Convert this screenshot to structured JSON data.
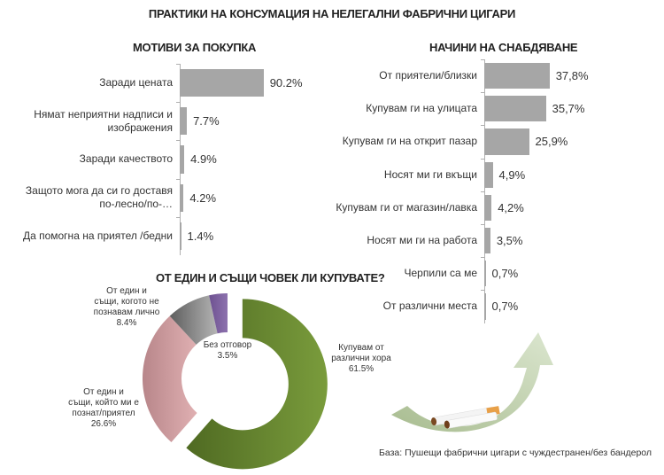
{
  "page": {
    "title": "ПРАКТИКИ НА КОНСУМАЦИЯ НА НЕЛЕГАЛНИ ФАБРИЧНИ ЦИГАРИ",
    "footnote": "База: Пушещи фабрични цигари  с чуждестранен/без бандерол",
    "colors": {
      "bar": "#a6a6a6",
      "green": "#6f8f33",
      "pink": "#d9a3a6",
      "gray": "#8c8c8c",
      "purple": "#8064a2",
      "arrow": "#c4d3b0"
    }
  },
  "chart_data": [
    {
      "type": "bar",
      "orientation": "horizontal",
      "title": "МОТИВИ ЗА ПОКУПКА",
      "categories": [
        "Заради цената",
        "Нямат неприятни надписи и изображения",
        "Заради качеството",
        "Защото мога да си го доставя по-лесно/по-…",
        "Да помогна на приятел /бедни"
      ],
      "values": [
        90.2,
        7.7,
        4.9,
        4.2,
        1.4
      ],
      "value_labels": [
        "90.2%",
        "7.7%",
        "4.9%",
        "4.2%",
        "1.4%"
      ],
      "unit": "%",
      "grid": false
    },
    {
      "type": "bar",
      "orientation": "horizontal",
      "title": "НАЧИНИ НА СНАБДЯВАНЕ",
      "categories": [
        "От приятели/близки",
        "Купувам ги на улицата",
        "Купувам ги на открит пазар",
        "Носят ми ги вкъщи",
        "Купувам ги от магазин/лавка",
        "Носят ми ги на работа",
        "Черпили са ме",
        "От различни места"
      ],
      "values": [
        37.8,
        35.7,
        25.9,
        4.9,
        4.2,
        3.5,
        0.7,
        0.7
      ],
      "value_labels": [
        "37,8%",
        "35,7%",
        "25,9%",
        "4,9%",
        "4,2%",
        "3,5%",
        "0,7%",
        "0,7%"
      ],
      "unit": "%",
      "grid": false
    },
    {
      "type": "pie",
      "subtype": "donut",
      "title": "ОТ ЕДИН И СЪЩИ ЧОВЕК ЛИ КУПУВАТЕ?",
      "categories": [
        "Купувам от различни хора",
        "От един и същи, който ми е познат/приятел",
        "От един и същи, когото не познавам лично",
        "Без отговор"
      ],
      "values": [
        61.5,
        26.6,
        8.4,
        3.5
      ],
      "value_labels": [
        "61.5%",
        "26.6%",
        "8.4%",
        "3.5%"
      ],
      "colors": [
        "#6f8f33",
        "#d9a3a6",
        "#8c8c8c",
        "#8064a2"
      ],
      "exploded": "Купувам от различни хора"
    }
  ],
  "left_chart": {
    "title": "МОТИВИ ЗА ПОКУПКА",
    "rows": [
      {
        "label": "Заради цената",
        "value": "90.2%"
      },
      {
        "label": "Нямат неприятни надписи и изображения",
        "value": "7.7%"
      },
      {
        "label": "Заради качеството",
        "value": "4.9%"
      },
      {
        "label": "Защото мога да си го доставя по-лесно/по-…",
        "value": "4.2%"
      },
      {
        "label": "Да помогна на приятел /бедни",
        "value": "1.4%"
      }
    ]
  },
  "right_chart": {
    "title": "НАЧИНИ НА СНАБДЯВАНЕ",
    "rows": [
      {
        "label": "От приятели/близки",
        "value": "37,8%"
      },
      {
        "label": "Купувам ги на улицата",
        "value": "35,7%"
      },
      {
        "label": "Купувам ги на открит пазар",
        "value": "25,9%"
      },
      {
        "label": "Носят ми ги вкъщи",
        "value": "4,9%"
      },
      {
        "label": "Купувам ги от магазин/лавка",
        "value": "4,2%"
      },
      {
        "label": "Носят ми ги на работа",
        "value": "3,5%"
      },
      {
        "label": "Черпили са ме",
        "value": "0,7%"
      },
      {
        "label": "От различни места",
        "value": "0,7%"
      }
    ]
  },
  "donut": {
    "title": "ОТ ЕДИН И СЪЩИ ЧОВЕК ЛИ КУПУВАТЕ?",
    "labels": {
      "different": {
        "l1": "Купувам от",
        "l2": "различни хора",
        "pct": "61.5%"
      },
      "known": {
        "l1": "От един и",
        "l2": "същи, който ми е",
        "l3": "познат/приятел",
        "pct": "26.6%"
      },
      "unknown": {
        "l1": "От един и",
        "l2": "същи, когото не",
        "l3": "познавам лично",
        "pct": "8.4%"
      },
      "no_answer": {
        "l1": "Без отговор",
        "pct": "3.5%"
      }
    }
  },
  "decor": {
    "arrow_icon": "curved-arrow-up",
    "cigarettes_icon": "cigarettes"
  }
}
